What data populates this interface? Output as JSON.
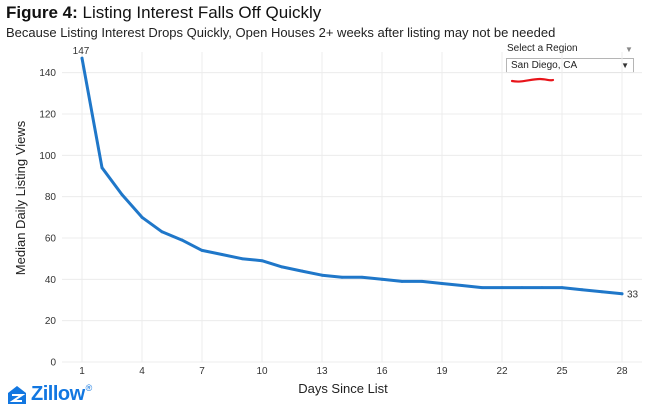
{
  "header": {
    "title_prefix": "Figure 4:",
    "title_text": "Listing Interest Falls Off Quickly",
    "subtitle": "Because Listing Interest Drops Quickly, Open Houses 2+ weeks after listing may not be needed"
  },
  "region_filter": {
    "label": "Select a Region",
    "selected": "San Diego, CA",
    "underline_color": "#e8141a"
  },
  "brand": {
    "name": "Zillow",
    "color": "#1277e1"
  },
  "chart_data": {
    "type": "line",
    "xlabel": "Days Since List",
    "ylabel": "Median Daily Listing Views",
    "xlim": [
      0,
      29
    ],
    "ylim": [
      0,
      150
    ],
    "xticks": [
      1,
      4,
      7,
      10,
      13,
      16,
      19,
      22,
      25,
      28
    ],
    "yticks": [
      0,
      20,
      40,
      60,
      80,
      100,
      120,
      140
    ],
    "grid": true,
    "line_color": "#1f77c9",
    "x": [
      1,
      2,
      3,
      4,
      5,
      6,
      7,
      8,
      9,
      10,
      11,
      12,
      13,
      14,
      15,
      16,
      17,
      18,
      19,
      20,
      21,
      22,
      23,
      24,
      25,
      26,
      27,
      28
    ],
    "y": [
      147,
      94,
      81,
      70,
      63,
      59,
      54,
      52,
      50,
      49,
      46,
      44,
      42,
      41,
      41,
      40,
      39,
      39,
      38,
      37,
      36,
      36,
      36,
      36,
      36,
      35,
      34,
      33
    ],
    "annotations": [
      {
        "x": 1,
        "y": 147,
        "text": "147"
      },
      {
        "x": 28,
        "y": 33,
        "text": "33"
      }
    ]
  }
}
